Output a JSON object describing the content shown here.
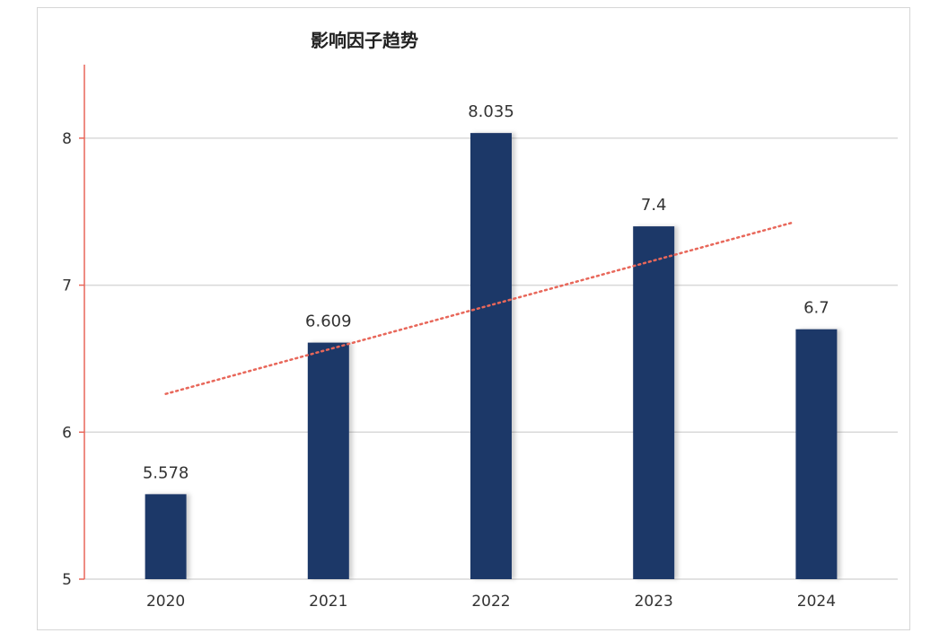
{
  "chart_data": {
    "type": "bar",
    "title": "影响因子趋势",
    "xlabel": "",
    "ylabel": "",
    "categories": [
      "2020",
      "2021",
      "2022",
      "2023",
      "2024"
    ],
    "values": [
      5.578,
      6.609,
      8.035,
      7.4,
      6.7
    ],
    "value_labels": [
      "5.578",
      "6.609",
      "8.035",
      "7.4",
      "6.7"
    ],
    "ylim": [
      5,
      8.5
    ],
    "yticks": [
      "5",
      "6",
      "7",
      "8"
    ],
    "grid": true,
    "legend": "none",
    "trendline": {
      "type": "linear",
      "style": "dotted",
      "start": 6.26,
      "end": 7.47
    },
    "colors": {
      "bar": "#1f3768",
      "trendline": "#e8675a",
      "y_axis": "#e8675a",
      "grid": "#d9d9d9"
    }
  }
}
